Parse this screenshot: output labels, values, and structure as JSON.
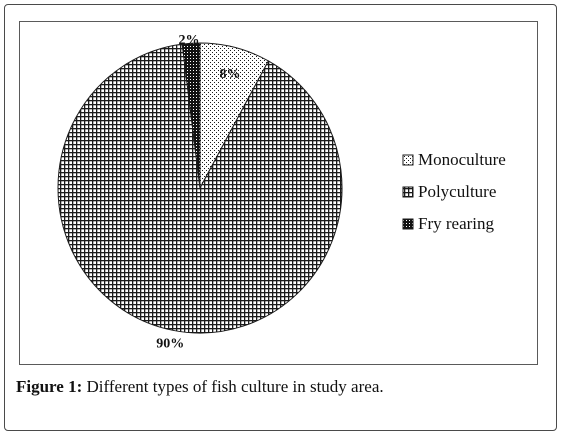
{
  "chart_data": {
    "type": "pie",
    "categories": [
      "Monoculture",
      "Polyculture",
      "Fry rearing"
    ],
    "values": [
      8,
      90,
      2
    ],
    "labels": [
      "8%",
      "90%",
      "2%"
    ],
    "title": "",
    "legend_position": "right",
    "colors": {
      "fill_pattern_ink": "#1a1a1a",
      "background": "#ffffff"
    }
  },
  "caption": {
    "label": "Figure 1:",
    "text": " Different types of fish culture in study area."
  }
}
